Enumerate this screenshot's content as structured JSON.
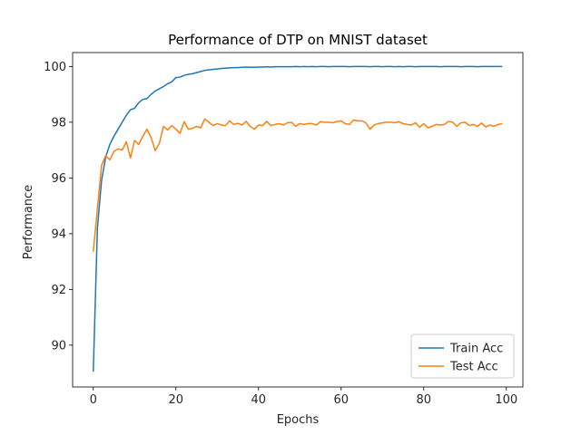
{
  "chart_data": {
    "type": "line",
    "title": "Performance of DTP on MNIST dataset",
    "xlabel": "Epochs",
    "ylabel": "Performance",
    "xlim": [
      -5,
      104
    ],
    "ylim": [
      88.5,
      100.5
    ],
    "xticks": [
      0,
      20,
      40,
      60,
      80,
      100
    ],
    "yticks": [
      90,
      92,
      94,
      96,
      98,
      100
    ],
    "grid": false,
    "legend_position": "lower-right",
    "series": [
      {
        "name": "Train Acc",
        "color": "#1f77b4",
        "x": [
          0,
          1,
          2,
          3,
          4,
          5,
          6,
          7,
          8,
          9,
          10,
          11,
          12,
          13,
          14,
          15,
          16,
          17,
          18,
          19,
          20,
          21,
          22,
          23,
          24,
          25,
          26,
          27,
          28,
          29,
          30,
          31,
          32,
          33,
          34,
          35,
          36,
          37,
          38,
          39,
          40,
          41,
          42,
          43,
          44,
          45,
          46,
          47,
          48,
          49,
          50,
          51,
          52,
          53,
          54,
          55,
          56,
          57,
          58,
          59,
          60,
          61,
          62,
          63,
          64,
          65,
          66,
          67,
          68,
          69,
          70,
          71,
          72,
          73,
          74,
          75,
          76,
          77,
          78,
          79,
          80,
          81,
          82,
          83,
          84,
          85,
          86,
          87,
          88,
          89,
          90,
          91,
          92,
          93,
          94,
          95,
          96,
          97,
          98,
          99
        ],
        "values": [
          89.05,
          94.2,
          95.9,
          96.75,
          97.2,
          97.5,
          97.75,
          98.0,
          98.25,
          98.45,
          98.5,
          98.7,
          98.82,
          98.85,
          99.0,
          99.12,
          99.2,
          99.28,
          99.38,
          99.45,
          99.6,
          99.62,
          99.68,
          99.72,
          99.74,
          99.78,
          99.82,
          99.86,
          99.88,
          99.9,
          99.91,
          99.93,
          99.94,
          99.95,
          99.96,
          99.96,
          99.97,
          99.98,
          99.97,
          99.97,
          99.98,
          99.98,
          99.99,
          99.98,
          99.99,
          99.99,
          99.99,
          99.99,
          99.99,
          100.0,
          99.99,
          100.0,
          99.99,
          100.0,
          99.99,
          100.0,
          100.0,
          99.99,
          100.0,
          100.0,
          100.0,
          100.0,
          99.99,
          100.0,
          100.0,
          100.0,
          100.0,
          99.99,
          100.0,
          100.0,
          99.99,
          100.0,
          100.0,
          99.99,
          100.0,
          99.99,
          100.0,
          100.0,
          99.99,
          100.0,
          100.0,
          100.0,
          100.0,
          100.0,
          99.99,
          100.0,
          100.0,
          100.0,
          100.0,
          99.99,
          100.0,
          100.0,
          100.0,
          99.99,
          100.0,
          100.0,
          100.0,
          100.0,
          100.0,
          100.0
        ]
      },
      {
        "name": "Test Acc",
        "color": "#ff7f0e",
        "x": [
          0,
          1,
          2,
          3,
          4,
          5,
          6,
          7,
          8,
          9,
          10,
          11,
          12,
          13,
          14,
          15,
          16,
          17,
          18,
          19,
          20,
          21,
          22,
          23,
          24,
          25,
          26,
          27,
          28,
          29,
          30,
          31,
          32,
          33,
          34,
          35,
          36,
          37,
          38,
          39,
          40,
          41,
          42,
          43,
          44,
          45,
          46,
          47,
          48,
          49,
          50,
          51,
          52,
          53,
          54,
          55,
          56,
          57,
          58,
          59,
          60,
          61,
          62,
          63,
          64,
          65,
          66,
          67,
          68,
          69,
          70,
          71,
          72,
          73,
          74,
          75,
          76,
          77,
          78,
          79,
          80,
          81,
          82,
          83,
          84,
          85,
          86,
          87,
          88,
          89,
          90,
          91,
          92,
          93,
          94,
          95,
          96,
          97,
          98,
          99
        ],
        "values": [
          93.35,
          94.9,
          96.45,
          96.8,
          96.65,
          96.95,
          97.05,
          97.0,
          97.3,
          96.72,
          97.35,
          97.2,
          97.5,
          97.75,
          97.45,
          96.98,
          97.25,
          97.85,
          97.72,
          97.88,
          97.75,
          97.6,
          98.02,
          97.75,
          97.78,
          97.85,
          97.8,
          98.12,
          98.0,
          97.88,
          97.95,
          97.9,
          97.88,
          98.05,
          97.92,
          97.96,
          97.9,
          98.03,
          97.85,
          97.75,
          97.9,
          97.88,
          98.03,
          97.88,
          97.92,
          97.95,
          97.9,
          97.98,
          98.0,
          97.85,
          97.95,
          97.92,
          97.95,
          97.95,
          97.9,
          98.02,
          98.0,
          98.0,
          97.98,
          98.03,
          98.05,
          97.95,
          97.92,
          98.08,
          98.05,
          98.05,
          97.98,
          97.75,
          97.9,
          97.95,
          97.98,
          98.0,
          98.0,
          97.98,
          98.02,
          97.95,
          97.92,
          97.9,
          97.98,
          97.82,
          97.95,
          97.8,
          97.85,
          97.92,
          97.9,
          97.92,
          98.03,
          98.0,
          97.85,
          97.98,
          98.0,
          97.88,
          97.92,
          97.85,
          97.97,
          97.83,
          97.9,
          97.85,
          97.92,
          97.95
        ]
      }
    ]
  }
}
